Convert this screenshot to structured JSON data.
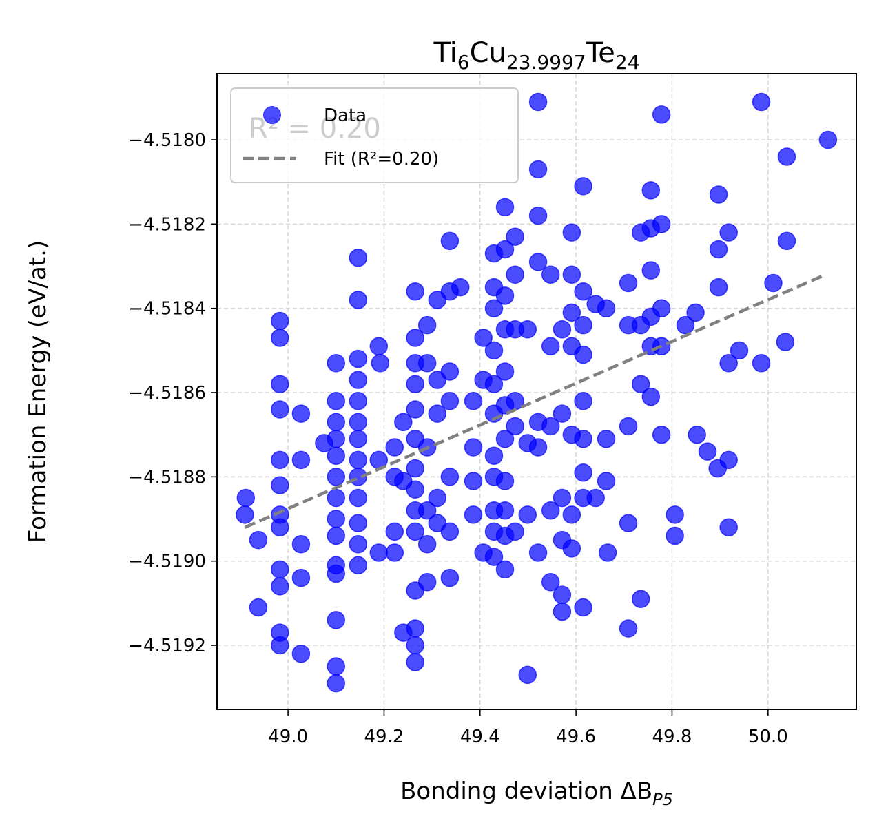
{
  "chart_data": {
    "type": "scatter",
    "title": [
      "Ti",
      "6",
      "Cu",
      "23.9997",
      "Te",
      "24"
    ],
    "x_label": [
      "Bonding deviation ΔB",
      "P5"
    ],
    "y_label": "Formation Energy (eV/at.)",
    "annotation": "R² = 0.20",
    "xlim": [
      48.852,
      50.184
    ],
    "ylim": [
      -4.519352,
      -4.517843
    ],
    "xticks": [
      {
        "value": 49.0,
        "label": "49.0"
      },
      {
        "value": 49.2,
        "label": "49.2"
      },
      {
        "value": 49.4,
        "label": "49.4"
      },
      {
        "value": 49.6,
        "label": "49.6"
      },
      {
        "value": 49.8,
        "label": "49.8"
      },
      {
        "value": 50.0,
        "label": "50.0"
      }
    ],
    "yticks": [
      {
        "value": -4.518,
        "label": "−4.5180"
      },
      {
        "value": -4.5182,
        "label": "−4.5182"
      },
      {
        "value": -4.5184,
        "label": "−4.5184"
      },
      {
        "value": -4.5186,
        "label": "−4.5186"
      },
      {
        "value": -4.5188,
        "label": "−4.5188"
      },
      {
        "value": -4.519,
        "label": "−4.5190"
      },
      {
        "value": -4.5192,
        "label": "−4.5192"
      }
    ],
    "grid": true,
    "legend": "upper left",
    "series": [
      {
        "name": "Data",
        "color": "#0000ff",
        "x": [
          48.912,
          48.91,
          48.938,
          48.938,
          48.983,
          48.983,
          48.983,
          48.983,
          48.983,
          48.983,
          48.983,
          48.983,
          48.983,
          48.983,
          48.983,
          48.983,
          49.027,
          49.027,
          49.027,
          49.027,
          49.027,
          49.075,
          49.1,
          49.1,
          49.1,
          49.1,
          49.1,
          49.1,
          49.1,
          49.1,
          49.1,
          49.1,
          49.1,
          49.1,
          49.1,
          49.1,
          49.146,
          49.146,
          49.146,
          49.146,
          49.146,
          49.146,
          49.146,
          49.146,
          49.146,
          49.146,
          49.146,
          49.146,
          49.146,
          49.189,
          49.189,
          49.189,
          49.192,
          49.222,
          49.222,
          49.222,
          49.222,
          49.24,
          49.24,
          49.24,
          49.265,
          49.265,
          49.265,
          49.265,
          49.265,
          49.265,
          49.265,
          49.265,
          49.265,
          49.265,
          49.265,
          49.265,
          49.265,
          49.265,
          49.29,
          49.29,
          49.29,
          49.29,
          49.29,
          49.29,
          49.311,
          49.311,
          49.311,
          49.311,
          49.311,
          49.337,
          49.337,
          49.337,
          49.337,
          49.337,
          49.337,
          49.337,
          49.359,
          49.386,
          49.386,
          49.386,
          49.386,
          49.407,
          49.407,
          49.407,
          49.429,
          49.429,
          49.429,
          49.429,
          49.429,
          49.429,
          49.429,
          49.429,
          49.429,
          49.429,
          49.429,
          49.452,
          49.452,
          49.452,
          49.452,
          49.452,
          49.452,
          49.452,
          49.452,
          49.452,
          49.452,
          49.452,
          49.473,
          49.473,
          49.473,
          49.473,
          49.473,
          49.473,
          49.499,
          49.499,
          49.499,
          49.499,
          49.521,
          49.521,
          49.521,
          49.521,
          49.521,
          49.521,
          49.521,
          49.547,
          49.547,
          49.547,
          49.547,
          49.547,
          49.571,
          49.571,
          49.571,
          49.571,
          49.571,
          49.571,
          49.591,
          49.591,
          49.591,
          49.591,
          49.591,
          49.591,
          49.591,
          49.615,
          49.615,
          49.615,
          49.615,
          49.615,
          49.615,
          49.615,
          49.615,
          49.615,
          49.641,
          49.641,
          49.663,
          49.663,
          49.663,
          49.666,
          49.709,
          49.709,
          49.709,
          49.709,
          49.709,
          49.735,
          49.735,
          49.735,
          49.735,
          49.756,
          49.756,
          49.756,
          49.756,
          49.756,
          49.756,
          49.778,
          49.778,
          49.778,
          49.778,
          49.778,
          49.806,
          49.806,
          49.828,
          49.849,
          49.852,
          49.874,
          49.895,
          49.897,
          49.897,
          49.897,
          49.918,
          49.918,
          49.918,
          49.918,
          49.94,
          49.986,
          49.986,
          50.011,
          50.036,
          50.039,
          50.039,
          50.125
        ],
        "values": [
          -4.51885,
          -4.51889,
          -4.51895,
          -4.51911,
          -4.51843,
          -4.51847,
          -4.51858,
          -4.51864,
          -4.51876,
          -4.51882,
          -4.51889,
          -4.51892,
          -4.51902,
          -4.51906,
          -4.51917,
          -4.5192,
          -4.51865,
          -4.51876,
          -4.51896,
          -4.51904,
          -4.51922,
          -4.51872,
          -4.51853,
          -4.51862,
          -4.51867,
          -4.51871,
          -4.51875,
          -4.5188,
          -4.51885,
          -4.5189,
          -4.51894,
          -4.51901,
          -4.51903,
          -4.51914,
          -4.51925,
          -4.51929,
          -4.51828,
          -4.51838,
          -4.51852,
          -4.51857,
          -4.51862,
          -4.51867,
          -4.51871,
          -4.51876,
          -4.5188,
          -4.51885,
          -4.51891,
          -4.51896,
          -4.51901,
          -4.51849,
          -4.51876,
          -4.51898,
          -4.51853,
          -4.51873,
          -4.51893,
          -4.51898,
          -4.5188,
          -4.51867,
          -4.51881,
          -4.51917,
          -4.51836,
          -4.51847,
          -4.51853,
          -4.51858,
          -4.51864,
          -4.51871,
          -4.51878,
          -4.51883,
          -4.51888,
          -4.51893,
          -4.51907,
          -4.51916,
          -4.5192,
          -4.51924,
          -4.51844,
          -4.51853,
          -4.51873,
          -4.51888,
          -4.51896,
          -4.51905,
          -4.51838,
          -4.51857,
          -4.51865,
          -4.51885,
          -4.51891,
          -4.51824,
          -4.51836,
          -4.51855,
          -4.51862,
          -4.5188,
          -4.51893,
          -4.51904,
          -4.51835,
          -4.51862,
          -4.51873,
          -4.51881,
          -4.51889,
          -4.51847,
          -4.51857,
          -4.51898,
          -4.51827,
          -4.51835,
          -4.5184,
          -4.5185,
          -4.51858,
          -4.51865,
          -4.51875,
          -4.5188,
          -4.51888,
          -4.51893,
          -4.51899,
          -4.51816,
          -4.51826,
          -4.51837,
          -4.51845,
          -4.51855,
          -4.51863,
          -4.51871,
          -4.51881,
          -4.51888,
          -4.51894,
          -4.51902,
          -4.51823,
          -4.51832,
          -4.51845,
          -4.51862,
          -4.51868,
          -4.51893,
          -4.51845,
          -4.51872,
          -4.51889,
          -4.51927,
          -4.51791,
          -4.51807,
          -4.51818,
          -4.51829,
          -4.51867,
          -4.51873,
          -4.51898,
          -4.51832,
          -4.51849,
          -4.51868,
          -4.51888,
          -4.51905,
          -4.51845,
          -4.51865,
          -4.51885,
          -4.51895,
          -4.51908,
          -4.51912,
          -4.51822,
          -4.51832,
          -4.51841,
          -4.51849,
          -4.5187,
          -4.51889,
          -4.51897,
          -4.51811,
          -4.51836,
          -4.51844,
          -4.51851,
          -4.51862,
          -4.51871,
          -4.51879,
          -4.51885,
          -4.51911,
          -4.51839,
          -4.51885,
          -4.5184,
          -4.51881,
          -4.51871,
          -4.51898,
          -4.51834,
          -4.51844,
          -4.51868,
          -4.51891,
          -4.51916,
          -4.51822,
          -4.51844,
          -4.51858,
          -4.51909,
          -4.51812,
          -4.51821,
          -4.51831,
          -4.51842,
          -4.51861,
          -4.51849,
          -4.51794,
          -4.5182,
          -4.5184,
          -4.51849,
          -4.5187,
          -4.51889,
          -4.51894,
          -4.51844,
          -4.51841,
          -4.5187,
          -4.51874,
          -4.51878,
          -4.51813,
          -4.51826,
          -4.51835,
          -4.51822,
          -4.51853,
          -4.51876,
          -4.51892,
          -4.5185,
          -4.51791,
          -4.51853,
          -4.51834,
          -4.51848,
          -4.51804,
          -4.51824,
          -4.518
        ]
      },
      {
        "name": "Fit (R²=0.20)",
        "type": "line",
        "color": "#808080",
        "x": [
          48.91,
          50.12
        ],
        "values": [
          -4.51892,
          -4.51832
        ]
      }
    ]
  }
}
